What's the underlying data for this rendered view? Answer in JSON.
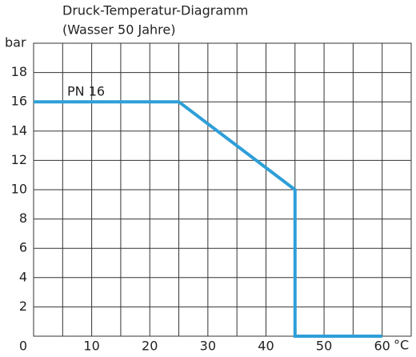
{
  "chart_data": {
    "type": "line",
    "title": "Druck-Temperatur-Diagramm",
    "subtitle": "(Wasser 50 Jahre)",
    "y_label": "bar",
    "x_label": "°C",
    "x": [
      0,
      25,
      45,
      45,
      60
    ],
    "series": [
      {
        "name": "PN 16",
        "color": "#2e9fd8",
        "values": [
          16,
          16,
          10,
          0,
          0
        ]
      }
    ],
    "xlim": [
      0,
      65
    ],
    "ylim": [
      0,
      20
    ],
    "xticks": [
      10,
      20,
      30,
      40,
      50,
      60
    ],
    "xminorticks": [
      5,
      15,
      25,
      35,
      45,
      55,
      65
    ],
    "yticks": [
      0,
      2,
      4,
      6,
      8,
      10,
      12,
      14,
      16,
      18
    ],
    "yminorticks": [
      20
    ],
    "grid": true
  }
}
